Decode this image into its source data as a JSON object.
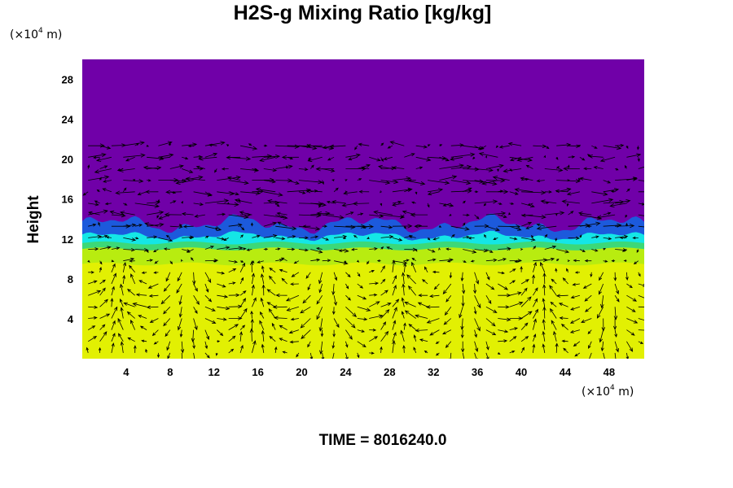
{
  "chart_data": {
    "type": "heatmap",
    "title": "H2S-g Mixing Ratio [kg/kg]",
    "ylabel": "Height",
    "x_unit": {
      "base": "(×10",
      "exp": "4",
      "rest": " m)"
    },
    "y_unit": {
      "base": "(×10",
      "exp": "4",
      "rest": " m)"
    },
    "xlim": [
      0,
      51.2
    ],
    "ylim": [
      0,
      30
    ],
    "x_ticks": [
      4,
      8,
      12,
      16,
      20,
      24,
      28,
      32,
      36,
      40,
      44,
      48
    ],
    "y_ticks": [
      4,
      8,
      12,
      16,
      20,
      24,
      28
    ],
    "field": {
      "description_levels": [
        {
          "y_from": 0,
          "y_to": 9.5,
          "color": "#e2f003"
        },
        {
          "y_from": 9.5,
          "y_to": 11,
          "color": "#b8ec10"
        },
        {
          "y_from": 11,
          "y_to": 11.6,
          "color": "#3cd878"
        },
        {
          "y_from": 11.6,
          "y_to": 12.3,
          "color": "#14e6e6"
        },
        {
          "y_from": 12.3,
          "y_to": 13.5,
          "color": "#1c5adc"
        },
        {
          "y_from": 13.5,
          "y_to": 30,
          "color": "#7000a8"
        }
      ],
      "interface_height_approx": 12.5
    },
    "vectors": {
      "overlay": true,
      "color": "#000000"
    }
  },
  "time_label": "TIME = 8016240.0"
}
